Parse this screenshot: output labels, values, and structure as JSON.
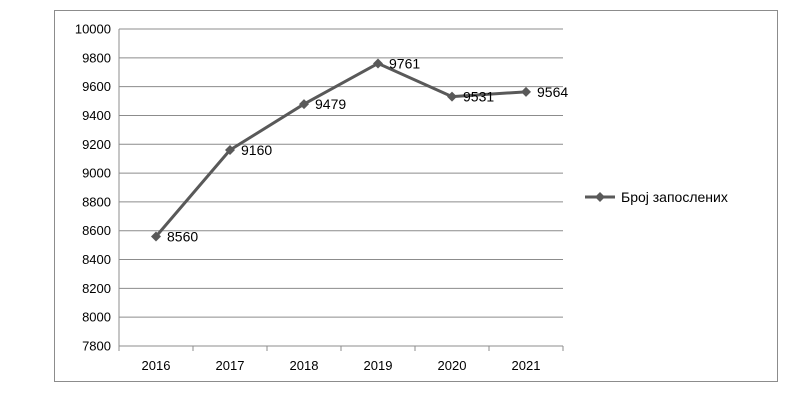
{
  "chart_data": {
    "type": "line",
    "categories": [
      "2016",
      "2017",
      "2018",
      "2019",
      "2020",
      "2021"
    ],
    "series": [
      {
        "name": "Број запослених",
        "values": [
          8560,
          9160,
          9479,
          9761,
          9531,
          9564
        ],
        "color": "#595959",
        "marker": "diamond"
      }
    ],
    "ylim": [
      7800,
      10000
    ],
    "yticks": [
      7800,
      8000,
      8200,
      8400,
      8600,
      8800,
      9000,
      9200,
      9400,
      9600,
      9800,
      10000
    ],
    "grid": "horizontal",
    "data_labels": true,
    "legend": "right",
    "colors": {
      "grid": "#8c8c8c",
      "axis": "#8c8c8c",
      "border": "#8c8c8c"
    }
  }
}
